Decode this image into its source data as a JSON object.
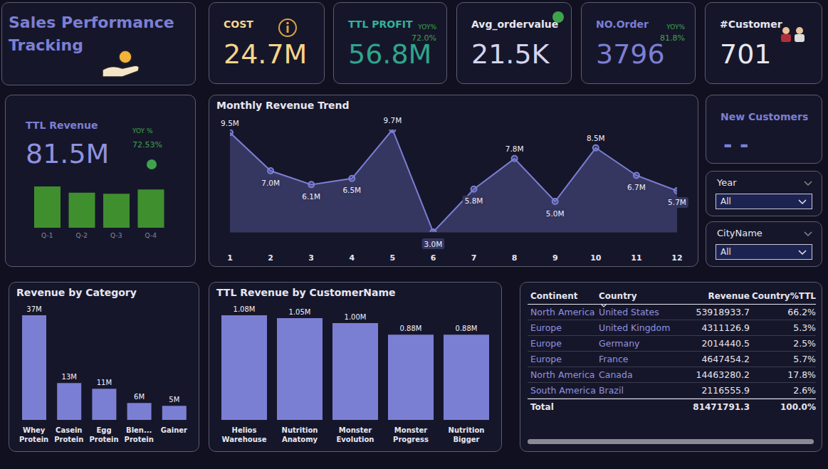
{
  "header": {
    "title": "Sales Performance Tracking"
  },
  "cards": [
    {
      "label": "COST",
      "value": "24.7M"
    },
    {
      "label": "TTL PROFIT",
      "value": "56.8M",
      "change_label": "YOY%",
      "change": "72.0%"
    },
    {
      "label": "Avg_ordervalue",
      "value": "21.5K"
    },
    {
      "label": "NO.Order",
      "value": "3796",
      "change_label": "YOY%",
      "change": "81.8%"
    },
    {
      "label": "#Customer",
      "value": "701"
    }
  ],
  "revenue_card": {
    "label": "TTL Revenue",
    "value": "81.5M",
    "change_label": "YOY %",
    "change": "72.53%"
  },
  "new_customers": {
    "label": "New Customers",
    "value": "- -"
  },
  "filters": [
    {
      "label": "Year",
      "value": "All"
    },
    {
      "label": "CityName",
      "value": "All"
    }
  ],
  "chart_data": [
    {
      "type": "bar",
      "categories": [
        "Q-1",
        "Q-2",
        "Q-3",
        "Q-4"
      ],
      "values": [
        22.6,
        19.2,
        18.6,
        20.9
      ],
      "color": "#3f8f2f",
      "ylim": [
        0,
        22.6
      ],
      "tick_labels": "x"
    },
    {
      "type": "area",
      "title": "Monthly Revenue Trend",
      "x": [
        1,
        2,
        3,
        4,
        5,
        6,
        7,
        8,
        9,
        10,
        11,
        12
      ],
      "xlim": [
        1,
        12
      ],
      "xticks": [
        1,
        2,
        3,
        4,
        5,
        6,
        7,
        8,
        9,
        10,
        11,
        12
      ],
      "values": [
        9.5,
        7.0,
        6.1,
        6.5,
        9.7,
        3.0,
        5.8,
        7.8,
        5.0,
        8.5,
        6.7,
        5.7
      ],
      "value_labels": [
        "9.5M",
        "7.0M",
        "6.1M",
        "6.5M",
        "9.7M",
        "3.0M",
        "5.8M",
        "7.8M",
        "5.0M",
        "8.5M",
        "6.7M",
        "5.7M"
      ],
      "color": "#7b7fd4",
      "marker": "circle",
      "data_labels": true,
      "ylim": [
        3.0,
        9.7
      ],
      "tick_labels": "x"
    },
    {
      "type": "bar",
      "title": "Revenue by Category",
      "categories": [
        "Whey Protein",
        "Casein Protein",
        "Egg Protein",
        "Blen... Protein",
        "Gainer"
      ],
      "values": [
        37,
        13,
        11,
        6,
        5
      ],
      "value_labels": [
        "37M",
        "13M",
        "11M",
        "6M",
        "5M"
      ],
      "color": "#7b7fd4",
      "data_labels": true,
      "ylim": [
        0,
        37
      ],
      "tick_labels": "x"
    },
    {
      "type": "bar",
      "title": "TTL Revenue by CustomerName",
      "categories": [
        "Helios Warehouse",
        "Nutrition Anatomy",
        "Monster Evolution",
        "Monster Progress",
        "Nutrition Bigger"
      ],
      "values": [
        1.08,
        1.05,
        1.0,
        0.88,
        0.88
      ],
      "value_labels": [
        "1.08M",
        "1.05M",
        "1.00M",
        "0.88M",
        "0.88M"
      ],
      "color": "#7b7fd4",
      "data_labels": true,
      "ylim": [
        0,
        1.08
      ],
      "tick_labels": "x"
    }
  ],
  "table": {
    "columns": [
      "Continent",
      "Country",
      "Revenue",
      "Country%TTL"
    ],
    "rows": [
      [
        "North America",
        "United States",
        "53918933.7",
        "66.2%"
      ],
      [
        "Europe",
        "United Kingdom",
        "4311126.9",
        "5.3%"
      ],
      [
        "Europe",
        "Germany",
        "2014440.5",
        "2.5%"
      ],
      [
        "Europe",
        "France",
        "4647454.2",
        "5.7%"
      ],
      [
        "North America",
        "Canada",
        "14463280.2",
        "17.8%"
      ],
      [
        "South America",
        "Brazil",
        "2116555.9",
        "2.6%"
      ]
    ],
    "total": [
      "Total",
      "",
      "81471791.3",
      "100.0%"
    ]
  }
}
